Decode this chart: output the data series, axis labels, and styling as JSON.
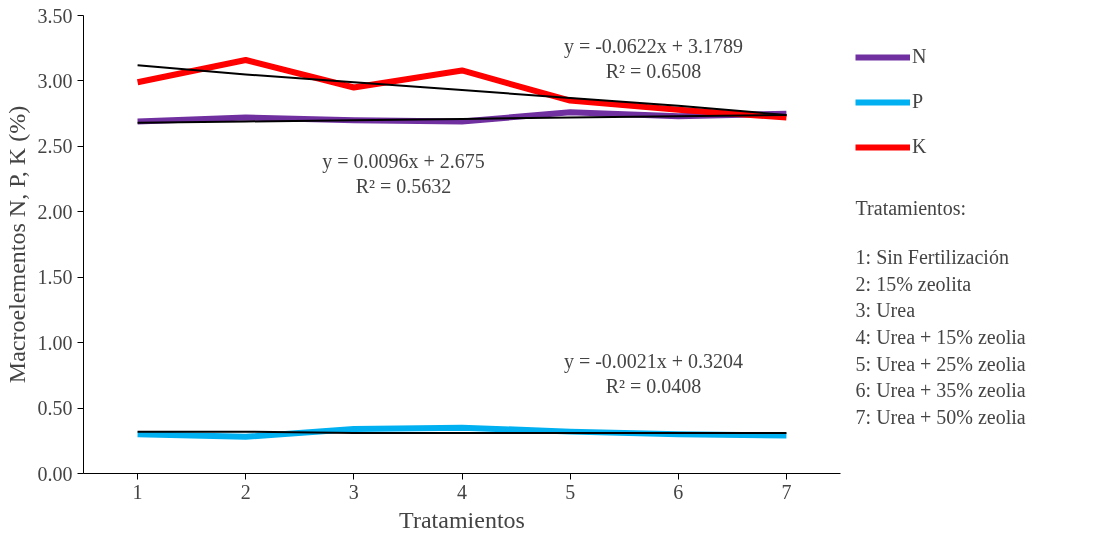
{
  "chart_data": {
    "type": "line",
    "xlabel": "Tratamientos",
    "ylabel": "Macroelementos N, P, K (%)",
    "x": [
      1,
      2,
      3,
      4,
      5,
      6,
      7
    ],
    "series": [
      {
        "name": "N",
        "color": "#7030a0",
        "values": [
          2.69,
          2.72,
          2.7,
          2.69,
          2.76,
          2.73,
          2.75
        ]
      },
      {
        "name": "P",
        "color": "#00b0f0",
        "values": [
          0.3,
          0.28,
          0.34,
          0.35,
          0.32,
          0.3,
          0.29
        ]
      },
      {
        "name": "K",
        "color": "#ff0000",
        "values": [
          2.99,
          3.16,
          2.95,
          3.08,
          2.85,
          2.78,
          2.72
        ]
      },
      {
        "type": "line",
        "color": "#000000",
        "values": [
          3.12,
          3.05,
          2.99,
          2.93,
          2.87,
          2.81,
          2.74
        ]
      },
      {
        "type": "line",
        "color": "#000000",
        "values": [
          2.68,
          2.69,
          2.7,
          2.71,
          2.72,
          2.73,
          2.74
        ]
      },
      {
        "type": "line",
        "color": "#000000",
        "values": [
          0.32,
          0.32,
          0.31,
          0.31,
          0.31,
          0.31,
          0.31
        ]
      }
    ],
    "xlim": [
      0.5,
      7.5
    ],
    "xticks": [
      1,
      2,
      3,
      4,
      5,
      6,
      7
    ],
    "ylim": [
      0,
      3.5
    ],
    "yticks": [
      {
        "value": 0,
        "label": "0.00"
      },
      {
        "value": 0.5,
        "label": "0.50"
      },
      {
        "value": 1,
        "label": "1.00"
      },
      {
        "value": 1.5,
        "label": "1.50"
      },
      {
        "value": 2,
        "label": "2.00"
      },
      {
        "value": 2.5,
        "label": "2.50"
      },
      {
        "value": 3,
        "label": "3.00"
      },
      {
        "value": 3.5,
        "label": "3.50"
      }
    ],
    "grid": false,
    "legend": "right",
    "marker": "none",
    "line_style": "solid",
    "annotations": [
      "y = -0.0622x + 3.1789\nR² = 0.6508",
      "y = 0.0096x + 2.675\nR² = 0.5632",
      "y = -0.0021x + 0.3204\nR² = 0.0408",
      "Tratamientos:",
      "1:   Sin Fertilización",
      "2:  15% zeolita",
      "3:  Urea",
      "4:  Urea + 15% zeolia",
      "5:  Urea + 25% zeolia",
      "6:  Urea + 35% zeolia",
      "7:  Urea + 50% zeolia"
    ]
  }
}
